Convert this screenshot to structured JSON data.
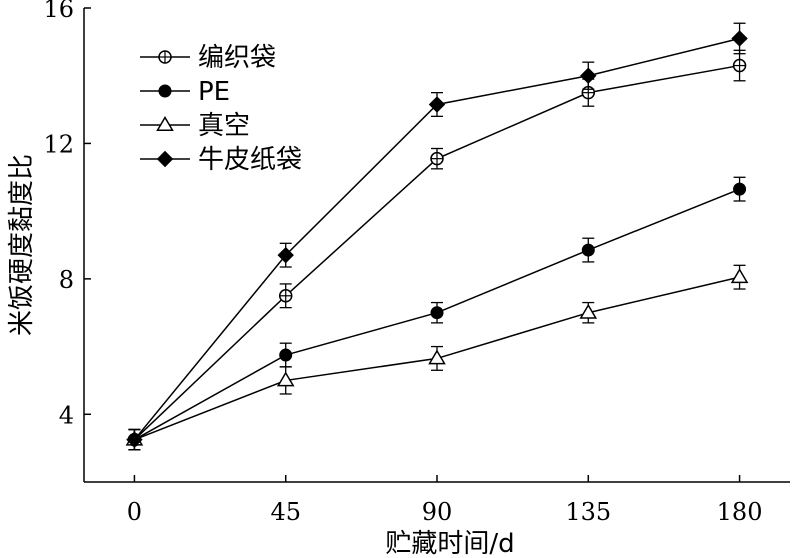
{
  "chart_data": {
    "type": "line",
    "title": "",
    "xlabel": "贮藏时间/d",
    "ylabel": "米饭硬度黏度比",
    "x": [
      0,
      45,
      90,
      135,
      180
    ],
    "xticks": [
      "0",
      "45",
      "90",
      "135",
      "180"
    ],
    "yticks": [
      "4",
      "8",
      "12",
      "16"
    ],
    "xlim": [
      -15,
      195
    ],
    "ylim": [
      2,
      16
    ],
    "grid": false,
    "legend_position": "top-left",
    "series": [
      {
        "name": "编织袋",
        "marker": "circle-cross",
        "values": [
          3.25,
          7.5,
          11.55,
          13.5,
          14.3
        ],
        "errors": [
          0.3,
          0.35,
          0.3,
          0.4,
          0.45
        ]
      },
      {
        "name": "PE",
        "marker": "filled-circle",
        "values": [
          3.25,
          5.75,
          7.0,
          8.85,
          10.65
        ],
        "errors": [
          0.3,
          0.35,
          0.3,
          0.35,
          0.35
        ]
      },
      {
        "name": "真空",
        "marker": "open-triangle",
        "values": [
          3.25,
          5.0,
          5.65,
          7.0,
          8.05
        ],
        "errors": [
          0.3,
          0.4,
          0.35,
          0.3,
          0.35
        ]
      },
      {
        "name": "牛皮纸袋",
        "marker": "filled-diamond",
        "values": [
          3.25,
          8.7,
          13.15,
          14.0,
          15.1
        ],
        "errors": [
          0.3,
          0.35,
          0.35,
          0.4,
          0.45
        ]
      }
    ]
  }
}
